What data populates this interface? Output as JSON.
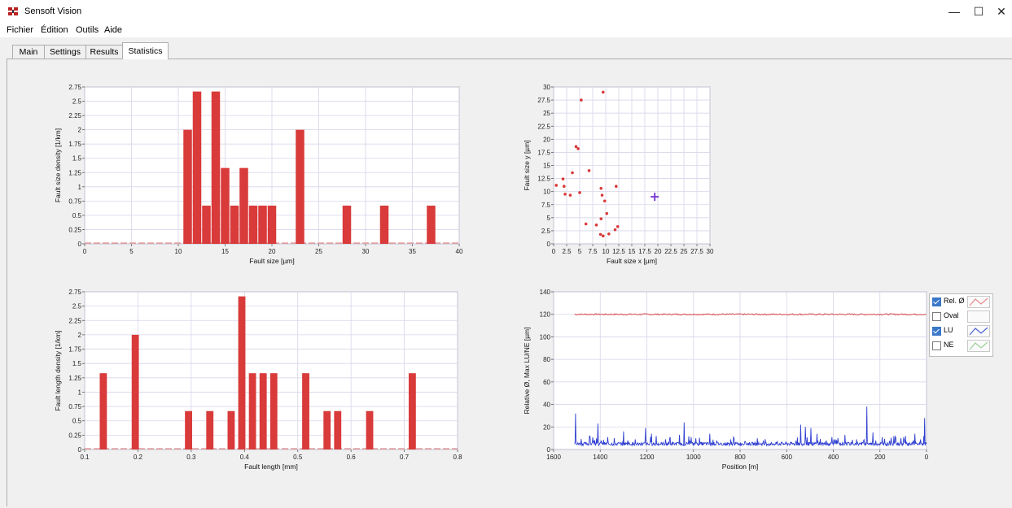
{
  "window": {
    "title": "Sensoft Vision",
    "minimize_glyph": "—",
    "maximize_glyph": "☐",
    "close_glyph": "✕"
  },
  "menu": [
    "Fichier",
    "Édition",
    "Outils",
    "Aide"
  ],
  "tabs": [
    {
      "label": "Main",
      "active": false
    },
    {
      "label": "Settings",
      "active": false
    },
    {
      "label": "Results",
      "active": false
    },
    {
      "label": "Statistics",
      "active": true
    }
  ],
  "colors": {
    "bar": "#d93a3a",
    "rel_series": "#d9484c",
    "lu_series": "#2f3fd0",
    "marker": "#7a3fd0",
    "grid": "#d6d6ea"
  },
  "legend": [
    {
      "label": "Rel. Ø",
      "checked": true,
      "swatch": "rel"
    },
    {
      "label": "Oval",
      "checked": false,
      "swatch": "none"
    },
    {
      "label": "LU",
      "checked": true,
      "swatch": "lu"
    },
    {
      "label": "NE",
      "checked": false,
      "swatch": "ne"
    }
  ],
  "chart_data": [
    {
      "type": "bar",
      "xlabel": "Fault size [µm]",
      "ylabel": "Fault size density [1/km]",
      "xlim": [
        0,
        40
      ],
      "ylim": [
        0,
        2.75
      ],
      "xticks": [
        0,
        5,
        10,
        15,
        20,
        25,
        30,
        35,
        40
      ],
      "xtick_labels": [
        "0",
        "5",
        "10",
        "15",
        "20",
        "25",
        "30",
        "35",
        "40"
      ],
      "yticks": [
        0,
        0.25,
        0.5,
        0.75,
        1,
        1.25,
        1.5,
        1.75,
        2,
        2.25,
        2.5,
        2.75
      ],
      "ytick_labels": [
        "0",
        "0.25",
        "0.5",
        "0.75",
        "1",
        "1.25",
        "1.5",
        "1.75",
        "2",
        "2.25",
        "2.5",
        "2.75"
      ],
      "bar_width": 1,
      "x": [
        11,
        12,
        13,
        14,
        15,
        16,
        17,
        18,
        19,
        20,
        23,
        28,
        32,
        37
      ],
      "values": [
        2,
        2.67,
        0.67,
        2.67,
        1.33,
        0.67,
        1.33,
        0.67,
        0.67,
        0.67,
        2,
        0.67,
        0.67,
        0.67
      ],
      "grid": true
    },
    {
      "type": "scatter",
      "xlabel": "Fault size x [µm]",
      "ylabel": "Fault size y [µm]",
      "xlim": [
        0,
        30
      ],
      "ylim": [
        0,
        30
      ],
      "xticks": [
        0,
        2.5,
        5,
        7.5,
        10,
        12.5,
        15,
        17.5,
        20,
        22.5,
        25,
        27.5,
        30
      ],
      "xtick_labels": [
        "0",
        "2.5",
        "5",
        "7.5",
        "10",
        "12.5",
        "15",
        "17.5",
        "20",
        "22.5",
        "25",
        "27.5",
        "30"
      ],
      "yticks": [
        0,
        2.5,
        5,
        7.5,
        10,
        12.5,
        15,
        17.5,
        20,
        22.5,
        25,
        27.5,
        30
      ],
      "ytick_labels": [
        "0",
        "2.5",
        "5",
        "7.5",
        "10",
        "12.5",
        "15",
        "17.5",
        "20",
        "22.5",
        "25",
        "27.5",
        "30"
      ],
      "points": [
        [
          0.5,
          11.2
        ],
        [
          1.8,
          12.4
        ],
        [
          2.0,
          11.0
        ],
        [
          2.2,
          9.5
        ],
        [
          3.2,
          9.3
        ],
        [
          3.6,
          13.6
        ],
        [
          4.3,
          18.6
        ],
        [
          4.7,
          18.2
        ],
        [
          5.0,
          9.8
        ],
        [
          5.3,
          27.5
        ],
        [
          6.8,
          14.0
        ],
        [
          6.2,
          3.8
        ],
        [
          8.2,
          3.6
        ],
        [
          9.1,
          10.6
        ],
        [
          9.3,
          9.3
        ],
        [
          9.1,
          4.8
        ],
        [
          9.8,
          8.2
        ],
        [
          9.5,
          29.0
        ],
        [
          10.2,
          5.8
        ],
        [
          9.0,
          1.8
        ],
        [
          9.5,
          1.5
        ],
        [
          10.6,
          1.9
        ],
        [
          11.8,
          2.7
        ],
        [
          12.0,
          11.0
        ],
        [
          12.3,
          3.3
        ]
      ],
      "marker_point": [
        19.4,
        9.0
      ],
      "grid": true
    },
    {
      "type": "bar",
      "xlabel": "Fault length [mm]",
      "ylabel": "Fault length density [1/km]",
      "xlim": [
        0.1,
        0.8
      ],
      "ylim": [
        0,
        2.75
      ],
      "xticks": [
        0.1,
        0.2,
        0.3,
        0.4,
        0.5,
        0.6,
        0.7,
        0.8
      ],
      "xtick_labels": [
        "0.1",
        "0.2",
        "0.3",
        "0.4",
        "0.5",
        "0.6",
        "0.7",
        "0.8"
      ],
      "yticks": [
        0,
        0.25,
        0.5,
        0.75,
        1,
        1.25,
        1.5,
        1.75,
        2,
        2.25,
        2.5,
        2.75
      ],
      "ytick_labels": [
        "0",
        "0.25",
        "0.5",
        "0.75",
        "1",
        "1.25",
        "1.5",
        "1.75",
        "2",
        "2.25",
        "2.5",
        "2.75"
      ],
      "bar_width": 0.015,
      "x": [
        0.135,
        0.195,
        0.295,
        0.335,
        0.375,
        0.395,
        0.415,
        0.435,
        0.455,
        0.515,
        0.555,
        0.575,
        0.635,
        0.715
      ],
      "values": [
        1.33,
        2,
        0.67,
        0.67,
        0.67,
        2.67,
        1.33,
        1.33,
        1.33,
        1.33,
        0.67,
        0.67,
        0.67,
        1.33
      ],
      "grid": true
    },
    {
      "type": "line",
      "xlabel": "Position [m]",
      "ylabel": "Relative Ø, Max LU/NE  [µm]",
      "xlim": [
        1600,
        0
      ],
      "ylim": [
        0,
        140
      ],
      "x_reversed": true,
      "xticks": [
        1600,
        1400,
        1200,
        1000,
        800,
        600,
        400,
        200,
        0
      ],
      "xtick_labels": [
        "1600",
        "1400",
        "1200",
        "1000",
        "800",
        "600",
        "400",
        "200",
        "0"
      ],
      "yticks": [
        0,
        20,
        40,
        60,
        80,
        100,
        120,
        140
      ],
      "ytick_labels": [
        "0",
        "20",
        "40",
        "60",
        "80",
        "100",
        "120",
        "140"
      ],
      "series": [
        {
          "name": "Rel. Ø",
          "baseline": 120,
          "x_range": [
            1510,
            0
          ],
          "noise": 1.2
        },
        {
          "name": "LU",
          "baseline": 5,
          "x_range": [
            1510,
            0
          ],
          "noise": 1.5,
          "spikes": [
            [
              1505,
              32
            ],
            [
              1445,
              12
            ],
            [
              1410,
              23
            ],
            [
              1395,
              8
            ],
            [
              1340,
              10
            ],
            [
              1300,
              16
            ],
            [
              1250,
              9
            ],
            [
              1205,
              19
            ],
            [
              1180,
              14
            ],
            [
              1160,
              12
            ],
            [
              1120,
              9
            ],
            [
              1100,
              11
            ],
            [
              1060,
              13
            ],
            [
              1040,
              24
            ],
            [
              1010,
              11
            ],
            [
              930,
              14
            ],
            [
              900,
              8
            ],
            [
              840,
              9
            ],
            [
              780,
              7
            ],
            [
              700,
              8
            ],
            [
              640,
              7
            ],
            [
              540,
              22
            ],
            [
              520,
              20
            ],
            [
              495,
              19
            ],
            [
              470,
              14
            ],
            [
              430,
              8
            ],
            [
              405,
              11
            ],
            [
              380,
              10
            ],
            [
              350,
              13
            ],
            [
              300,
              9
            ],
            [
              255,
              38
            ],
            [
              230,
              15
            ],
            [
              190,
              11
            ],
            [
              140,
              12
            ],
            [
              110,
              10
            ],
            [
              90,
              12
            ],
            [
              50,
              14
            ],
            [
              25,
              9
            ],
            [
              8,
              28
            ]
          ]
        }
      ],
      "grid": true
    }
  ]
}
